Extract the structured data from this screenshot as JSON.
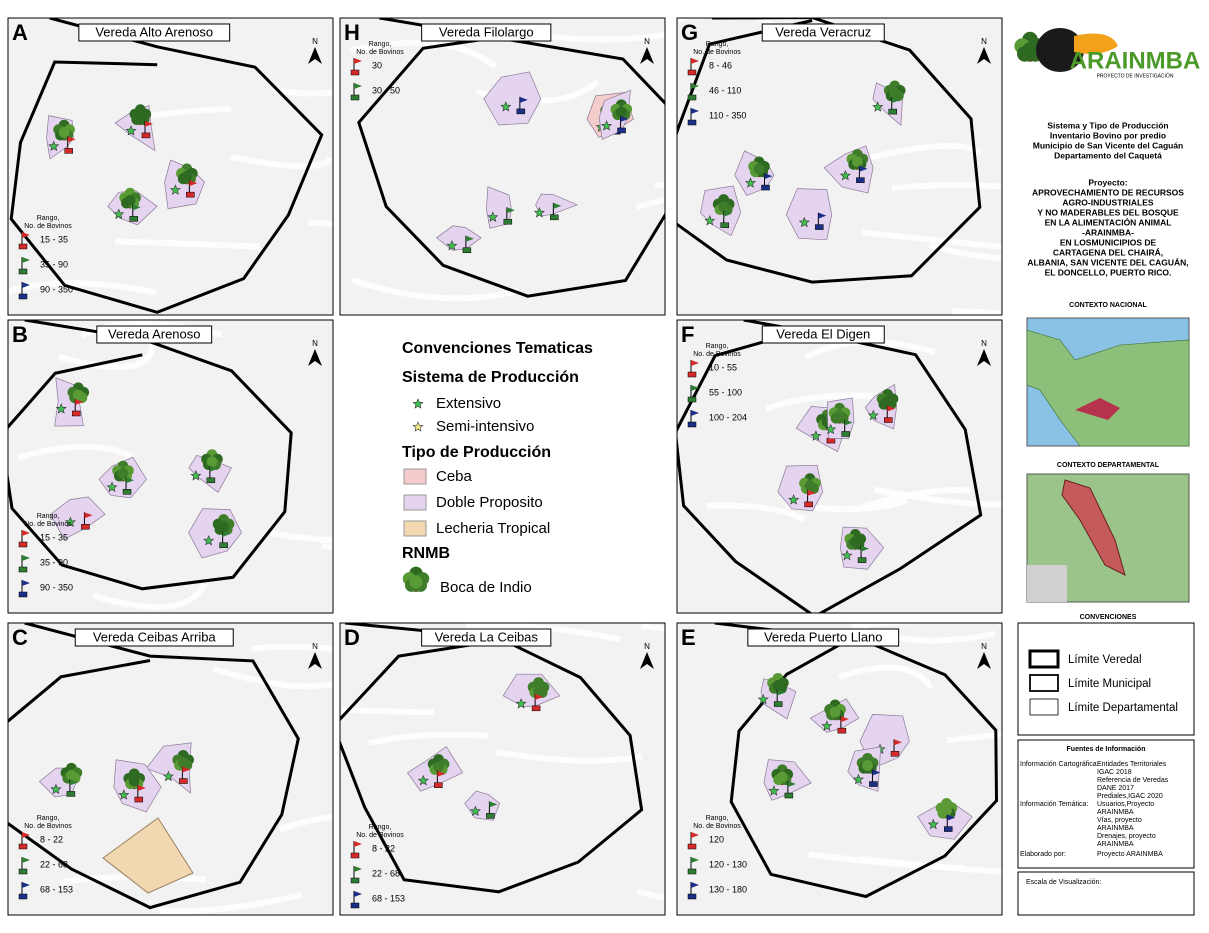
{
  "north_label": "N",
  "range_title": [
    "Rango,",
    "No. de Bovinos"
  ],
  "panels": [
    {
      "letter": "A",
      "title": "Vereda Alto Arenoso",
      "ranges": [
        "15 - 35",
        "35 - 90",
        "90 - 350"
      ]
    },
    {
      "letter": "H",
      "title": "Vereda Filolargo",
      "ranges": [
        "30",
        "30 - 50"
      ]
    },
    {
      "letter": "G",
      "title": "Vereda Veracruz",
      "ranges": [
        "8 - 46",
        "46 - 110",
        "110 - 350"
      ]
    },
    {
      "letter": "B",
      "title": "Vereda Arenoso",
      "ranges": [
        "15 - 35",
        "35 - 90",
        "90 - 350"
      ]
    },
    {
      "letter": "F",
      "title": "Vereda El Digen",
      "ranges": [
        "10 - 55",
        "55 - 100",
        "100 - 204"
      ]
    },
    {
      "letter": "C",
      "title": "Vereda Ceibas Arriba",
      "ranges": [
        "8 - 22",
        "22 - 68",
        "68 - 153"
      ]
    },
    {
      "letter": "D",
      "title": "Vereda La Ceibas",
      "ranges": [
        "8 - 22",
        "22 - 68",
        "68 - 153"
      ]
    },
    {
      "letter": "E",
      "title": "Vereda Puerto Llano",
      "ranges": [
        "120",
        "120 - 130",
        "130 - 180"
      ]
    }
  ],
  "legend": {
    "title": "Convenciones Tematicas",
    "system_title": "Sistema de Producción",
    "systems": [
      "Extensivo",
      "Semi-intensivo"
    ],
    "type_title": "Tipo de Producción",
    "types": [
      "Ceba",
      "Doble Proposito",
      "Lecheria Tropical"
    ],
    "rnmb_title": "RNMB",
    "rnmb": "Boca de Indio"
  },
  "sidebar": {
    "logo": "ARAINMBA",
    "logo_sub": "PROYECTO DE INVESTIGACIÓN",
    "description": [
      "Sistema y Tipo de Producción",
      "Inventario Bovino por predio",
      "Municipio de San Vicente del Caguán",
      "Departamento del Caquetá"
    ],
    "project": [
      "Proyecto:",
      "APROVECHAMIENTO DE RECURSOS",
      "AGRO-INDUSTRIALES",
      "Y NO MADERABLES DEL BOSQUE",
      "EN LA ALIMENTACIÓN ANIMAL",
      "-ARAINMBA-",
      "EN LOSMUNICIPIOS DE",
      "CARTAGENA DEL CHAIRÁ,",
      "ALBANIA, SAN VICENTE DEL CAGUÁN,",
      "EL DONCELLO, PUERTO RICO."
    ],
    "national": "CONTEXTO NACIONAL",
    "departmental": "CONTEXTO DEPARTAMENTAL",
    "conventions": "CONVENCIONES",
    "limits": [
      "Límite Veredal",
      "Límite Municipal",
      "Límite Departamental"
    ],
    "sources_title": "Fuentes de Información",
    "sources": [
      {
        "label": "Información Cartográfica:",
        "items": [
          "Entidades Territoriales",
          "IGAC 2018",
          "Referencia de Veredas",
          "DANE 2017",
          "Prediales,IGAC 2020"
        ]
      },
      {
        "label": "Información Temática:",
        "items": [
          "Usuarios,Proyecto",
          "ARAINMBA",
          "Vías, proyecto",
          "ARAINMBA",
          "Drenajes, proyecto",
          "ARAINMBA"
        ]
      },
      {
        "label": "Elaborado por:",
        "items": [
          "Proyecto ARAINMBA"
        ]
      }
    ],
    "scale": "Escala de Visualización:"
  }
}
